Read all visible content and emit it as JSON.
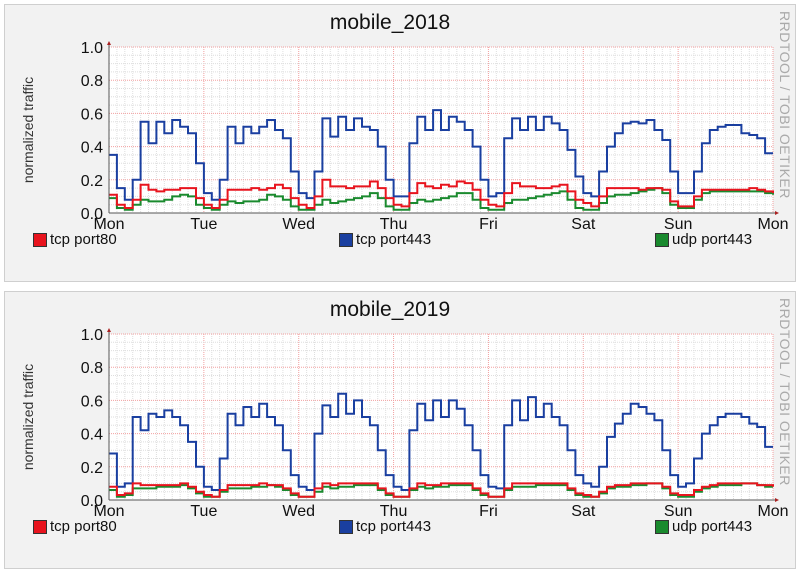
{
  "chart_data": [
    {
      "type": "line",
      "title": "mobile_2018",
      "ylabel": "normalized traffic",
      "watermark": "RRDTOOL / TOBI OETIKER",
      "ylim": [
        0,
        1.0
      ],
      "yticks": [
        "0.0",
        "0.2",
        "0.4",
        "0.6",
        "0.8",
        "1.0"
      ],
      "xticks": [
        "Mon",
        "Tue",
        "Wed",
        "Thu",
        "Fri",
        "Sat",
        "Sun",
        "Mon"
      ],
      "grid": true,
      "legend": "bottom",
      "step": "2h",
      "series": [
        {
          "name": "tcp port80",
          "color": "#e8141e",
          "values": [
            0.11,
            0.05,
            0.03,
            0.08,
            0.17,
            0.14,
            0.13,
            0.14,
            0.14,
            0.15,
            0.15,
            0.09,
            0.05,
            0.03,
            0.08,
            0.14,
            0.14,
            0.14,
            0.15,
            0.14,
            0.15,
            0.17,
            0.15,
            0.09,
            0.05,
            0.03,
            0.1,
            0.2,
            0.16,
            0.16,
            0.15,
            0.16,
            0.16,
            0.19,
            0.15,
            0.09,
            0.05,
            0.04,
            0.12,
            0.18,
            0.16,
            0.15,
            0.17,
            0.16,
            0.19,
            0.18,
            0.14,
            0.08,
            0.05,
            0.04,
            0.12,
            0.18,
            0.16,
            0.16,
            0.15,
            0.15,
            0.16,
            0.17,
            0.13,
            0.08,
            0.06,
            0.04,
            0.1,
            0.15,
            0.15,
            0.15,
            0.15,
            0.14,
            0.15,
            0.15,
            0.14,
            0.07,
            0.04,
            0.04,
            0.1,
            0.14,
            0.14,
            0.14,
            0.14,
            0.14,
            0.14,
            0.15,
            0.14,
            0.13,
            0.12
          ]
        },
        {
          "name": "tcp port443",
          "color": "#1a3fa0",
          "values": [
            0.35,
            0.15,
            0.08,
            0.2,
            0.55,
            0.42,
            0.55,
            0.48,
            0.56,
            0.52,
            0.48,
            0.3,
            0.12,
            0.08,
            0.2,
            0.52,
            0.42,
            0.52,
            0.48,
            0.52,
            0.56,
            0.5,
            0.45,
            0.25,
            0.12,
            0.09,
            0.25,
            0.57,
            0.46,
            0.58,
            0.5,
            0.57,
            0.52,
            0.5,
            0.4,
            0.2,
            0.1,
            0.1,
            0.42,
            0.58,
            0.5,
            0.62,
            0.5,
            0.58,
            0.55,
            0.5,
            0.4,
            0.2,
            0.1,
            0.12,
            0.45,
            0.57,
            0.5,
            0.58,
            0.5,
            0.58,
            0.54,
            0.5,
            0.38,
            0.22,
            0.12,
            0.1,
            0.25,
            0.4,
            0.48,
            0.54,
            0.55,
            0.54,
            0.56,
            0.5,
            0.44,
            0.25,
            0.12,
            0.12,
            0.25,
            0.42,
            0.5,
            0.52,
            0.53,
            0.53,
            0.48,
            0.47,
            0.45,
            0.36,
            0.36
          ]
        },
        {
          "name": "udp port443",
          "color": "#1a8a2e",
          "values": [
            0.09,
            0.03,
            0.02,
            0.05,
            0.08,
            0.07,
            0.07,
            0.08,
            0.1,
            0.11,
            0.1,
            0.05,
            0.03,
            0.02,
            0.05,
            0.07,
            0.06,
            0.07,
            0.07,
            0.08,
            0.11,
            0.1,
            0.08,
            0.04,
            0.02,
            0.02,
            0.05,
            0.08,
            0.06,
            0.07,
            0.08,
            0.09,
            0.1,
            0.12,
            0.09,
            0.04,
            0.02,
            0.02,
            0.06,
            0.08,
            0.07,
            0.08,
            0.09,
            0.1,
            0.12,
            0.12,
            0.08,
            0.03,
            0.02,
            0.02,
            0.06,
            0.08,
            0.08,
            0.09,
            0.1,
            0.11,
            0.12,
            0.13,
            0.08,
            0.03,
            0.02,
            0.02,
            0.06,
            0.1,
            0.11,
            0.11,
            0.12,
            0.13,
            0.14,
            0.15,
            0.12,
            0.05,
            0.03,
            0.03,
            0.08,
            0.12,
            0.13,
            0.13,
            0.13,
            0.13,
            0.13,
            0.13,
            0.13,
            0.12,
            0.11
          ]
        }
      ]
    },
    {
      "type": "line",
      "title": "mobile_2019",
      "ylabel": "normalized traffic",
      "watermark": "RRDTOOL / TOBI OETIKER",
      "ylim": [
        0,
        1.0
      ],
      "yticks": [
        "0.0",
        "0.2",
        "0.4",
        "0.6",
        "0.8",
        "1.0"
      ],
      "xticks": [
        "Mon",
        "Tue",
        "Wed",
        "Thu",
        "Fri",
        "Sat",
        "Sun",
        "Mon"
      ],
      "grid": true,
      "legend": "bottom",
      "step": "2h",
      "series": [
        {
          "name": "tcp port80",
          "color": "#e8141e",
          "values": [
            0.08,
            0.03,
            0.04,
            0.1,
            0.09,
            0.09,
            0.09,
            0.09,
            0.09,
            0.1,
            0.08,
            0.05,
            0.03,
            0.02,
            0.06,
            0.09,
            0.09,
            0.09,
            0.09,
            0.1,
            0.09,
            0.09,
            0.07,
            0.04,
            0.02,
            0.02,
            0.07,
            0.1,
            0.09,
            0.1,
            0.1,
            0.1,
            0.1,
            0.1,
            0.07,
            0.04,
            0.02,
            0.02,
            0.07,
            0.1,
            0.09,
            0.09,
            0.1,
            0.1,
            0.1,
            0.1,
            0.07,
            0.04,
            0.02,
            0.02,
            0.07,
            0.1,
            0.1,
            0.1,
            0.1,
            0.1,
            0.1,
            0.1,
            0.07,
            0.04,
            0.03,
            0.02,
            0.05,
            0.08,
            0.09,
            0.09,
            0.1,
            0.1,
            0.1,
            0.1,
            0.08,
            0.04,
            0.03,
            0.03,
            0.06,
            0.08,
            0.09,
            0.1,
            0.1,
            0.1,
            0.1,
            0.1,
            0.09,
            0.09,
            0.08
          ]
        },
        {
          "name": "tcp port443",
          "color": "#1a3fa0",
          "values": [
            0.28,
            0.08,
            0.1,
            0.5,
            0.42,
            0.52,
            0.5,
            0.54,
            0.5,
            0.45,
            0.35,
            0.2,
            0.08,
            0.06,
            0.25,
            0.52,
            0.45,
            0.56,
            0.5,
            0.58,
            0.5,
            0.45,
            0.3,
            0.15,
            0.08,
            0.06,
            0.4,
            0.57,
            0.5,
            0.64,
            0.52,
            0.6,
            0.5,
            0.45,
            0.3,
            0.15,
            0.08,
            0.06,
            0.42,
            0.58,
            0.48,
            0.6,
            0.5,
            0.6,
            0.55,
            0.45,
            0.3,
            0.15,
            0.08,
            0.07,
            0.45,
            0.6,
            0.48,
            0.62,
            0.5,
            0.58,
            0.5,
            0.45,
            0.3,
            0.15,
            0.1,
            0.08,
            0.2,
            0.38,
            0.46,
            0.52,
            0.58,
            0.56,
            0.52,
            0.48,
            0.3,
            0.15,
            0.08,
            0.1,
            0.25,
            0.4,
            0.45,
            0.5,
            0.52,
            0.52,
            0.5,
            0.46,
            0.44,
            0.32,
            0.32
          ]
        },
        {
          "name": "udp port443",
          "color": "#1a8a2e",
          "values": [
            0.06,
            0.02,
            0.03,
            0.07,
            0.07,
            0.07,
            0.08,
            0.08,
            0.08,
            0.09,
            0.07,
            0.04,
            0.02,
            0.02,
            0.05,
            0.07,
            0.07,
            0.07,
            0.08,
            0.08,
            0.09,
            0.08,
            0.06,
            0.03,
            0.02,
            0.02,
            0.05,
            0.08,
            0.07,
            0.08,
            0.08,
            0.09,
            0.09,
            0.09,
            0.06,
            0.03,
            0.02,
            0.02,
            0.06,
            0.08,
            0.07,
            0.08,
            0.08,
            0.09,
            0.09,
            0.09,
            0.06,
            0.03,
            0.02,
            0.02,
            0.06,
            0.08,
            0.08,
            0.08,
            0.09,
            0.09,
            0.09,
            0.09,
            0.06,
            0.03,
            0.02,
            0.02,
            0.04,
            0.07,
            0.08,
            0.08,
            0.09,
            0.09,
            0.1,
            0.1,
            0.07,
            0.03,
            0.02,
            0.02,
            0.05,
            0.07,
            0.08,
            0.09,
            0.09,
            0.09,
            0.1,
            0.1,
            0.09,
            0.08,
            0.08
          ]
        }
      ]
    }
  ]
}
